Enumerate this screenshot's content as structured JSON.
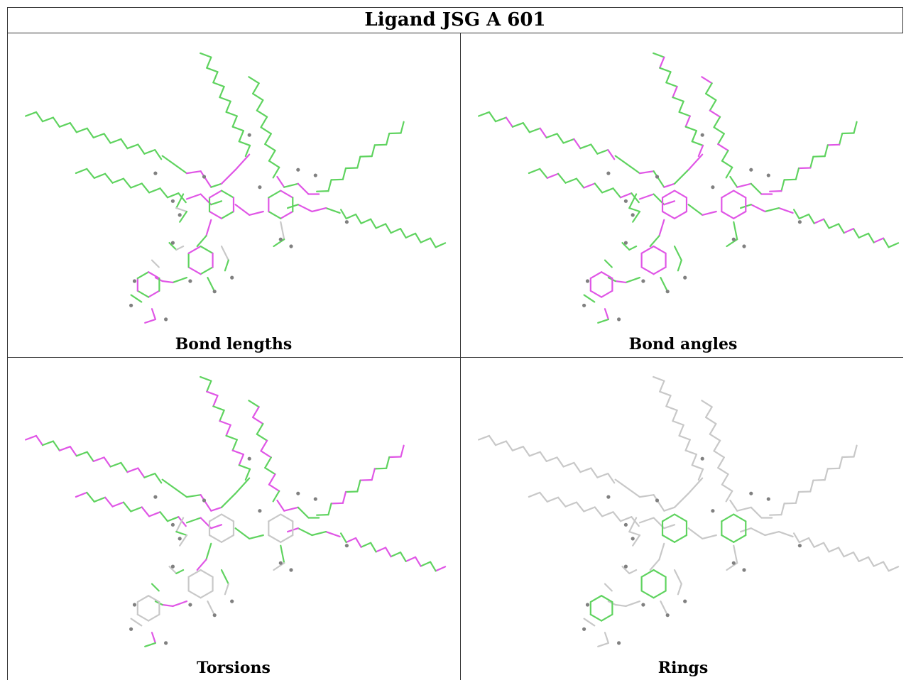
{
  "title": "Ligand JSG A 601",
  "panels": [
    {
      "caption": "Bond lengths",
      "mode": "lengths"
    },
    {
      "caption": "Bond angles",
      "mode": "angles"
    },
    {
      "caption": "Torsions",
      "mode": "torsions"
    },
    {
      "caption": "Rings",
      "mode": "rings"
    }
  ],
  "colors": {
    "green": "#5fd35f",
    "magenta": "#e056e6",
    "grey": "#c8c8c8",
    "atom": "#808080",
    "border": "#333333"
  }
}
